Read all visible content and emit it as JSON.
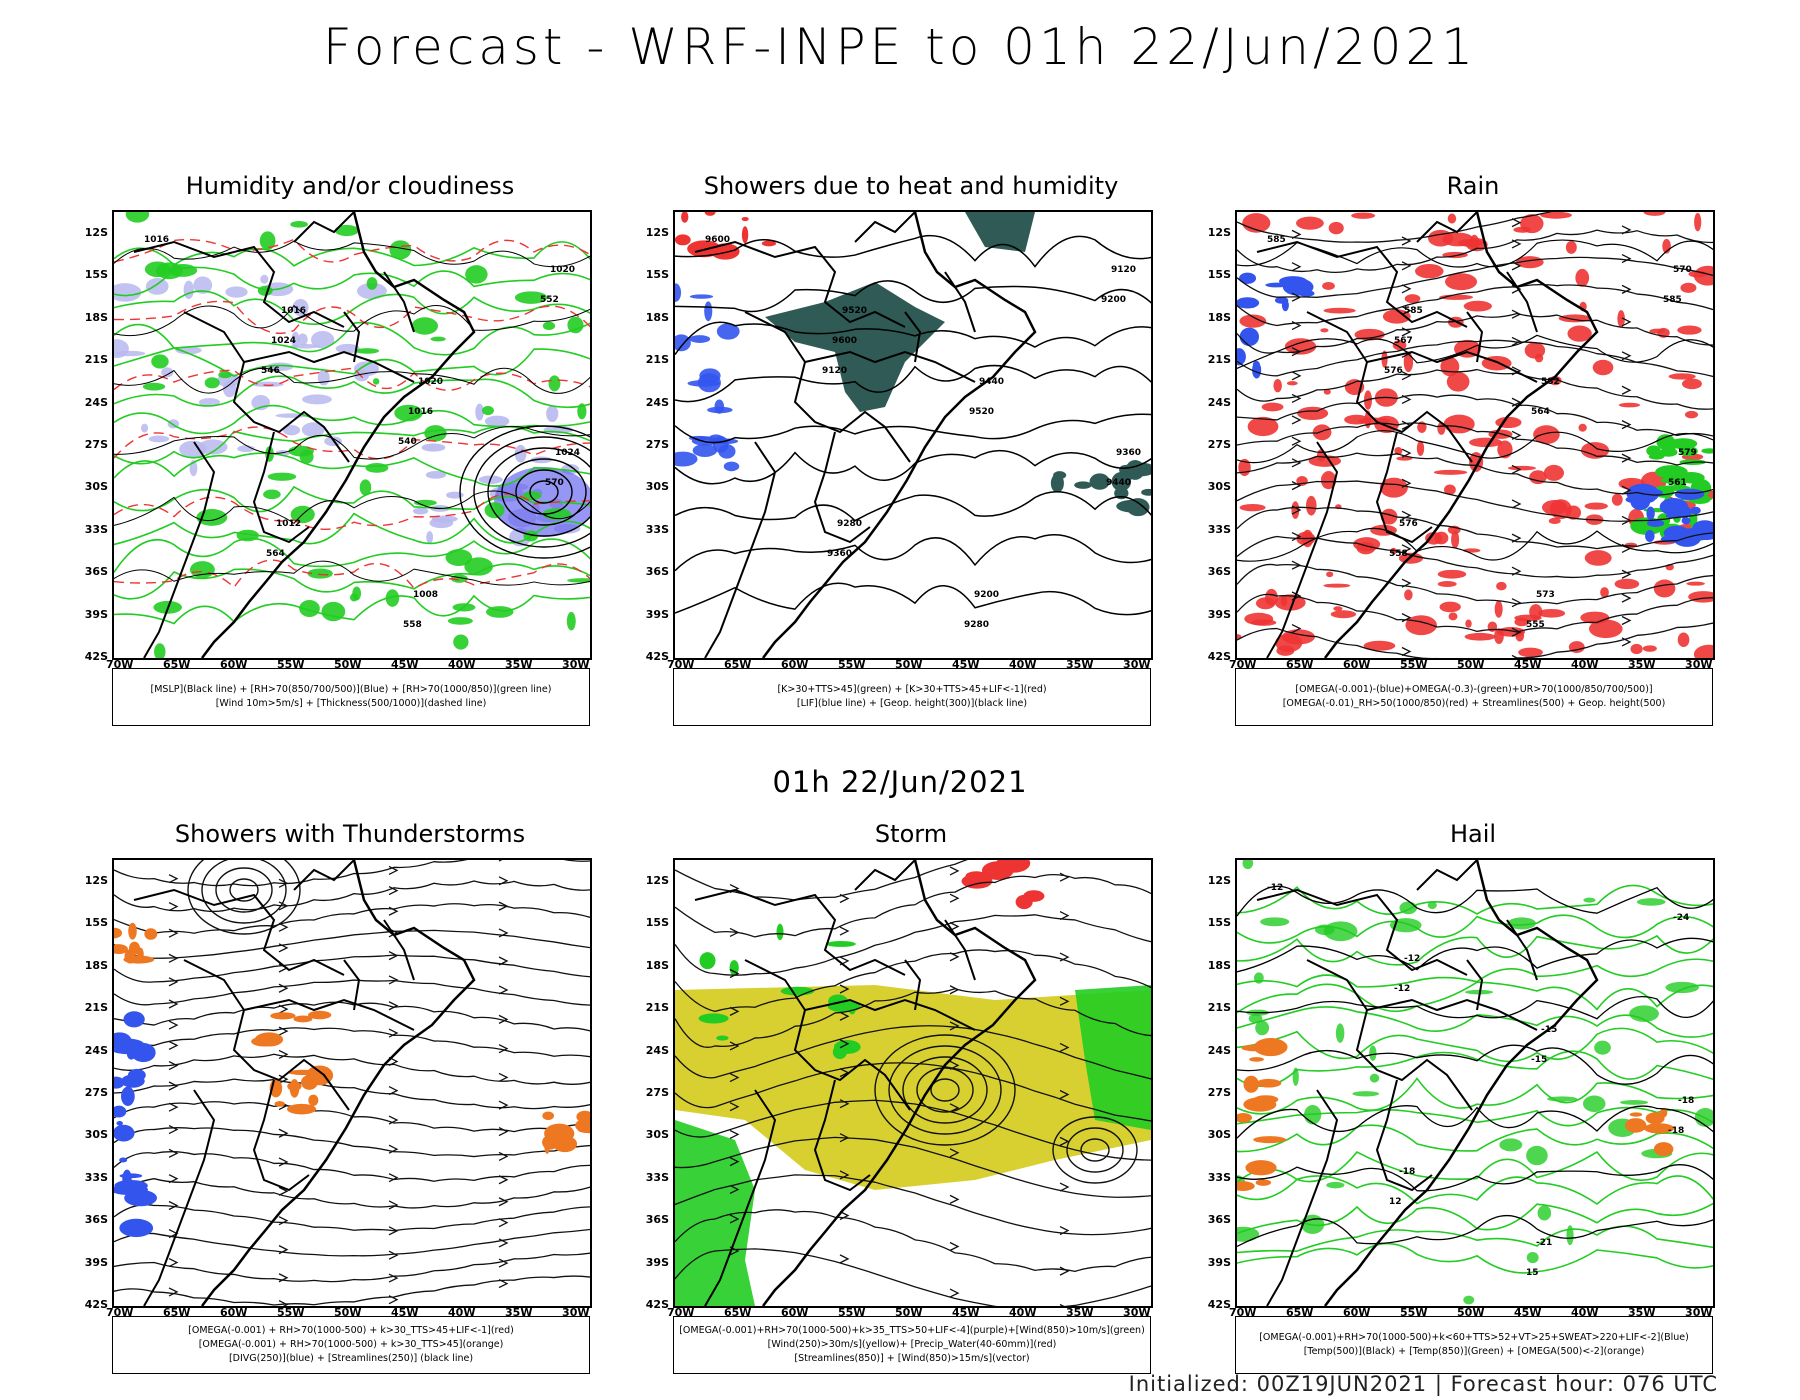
{
  "title": "Forecast - WRF-INPE to 01h 22/Jun/2021",
  "subtitle": "01h 22/Jun/2021",
  "footer": "Initialized: 00Z19JUN2021 | Forecast hour: 076 UTC",
  "lat_labels": [
    "12S",
    "15S",
    "18S",
    "21S",
    "24S",
    "27S",
    "30S",
    "33S",
    "36S",
    "39S",
    "42S"
  ],
  "lon_labels": [
    "70W",
    "65W",
    "60W",
    "55W",
    "50W",
    "45W",
    "40W",
    "35W",
    "30W"
  ],
  "colors": {
    "green": "#22cc22",
    "blue": "#3355ee",
    "red": "#ee3333",
    "orange": "#ee7722",
    "yellow": "#d8d030",
    "teal": "#2f5a55",
    "lavender": "#b8b8f0"
  },
  "panels": [
    {
      "title": "Humidity and/or cloudiness",
      "legend": [
        "[MSLP](Black line) + [RH>70(850/700/500)](Blue) + [RH>70(1000/850)](green line)",
        "[Wind 10m>5m/s] + [Thickness(500/1000)](dashed line)"
      ],
      "contour_labels": [
        "1016",
        "1016",
        "1020",
        "1024",
        "1012",
        "1008",
        "1020",
        "1024",
        "1016",
        "570",
        "564",
        "558",
        "552",
        "546",
        "540"
      ]
    },
    {
      "title": "Showers due to heat and humidity",
      "legend": [
        "[K>30+TTS>45](green) + [K>30+TTS>45+LIF<-1](red)",
        "[LIF](blue line) + [Geop. height(300)](black line)"
      ],
      "contour_labels": [
        "9600",
        "9520",
        "9440",
        "9360",
        "9280",
        "9200",
        "9120",
        "9600",
        "9520",
        "9440",
        "9360",
        "9280",
        "9200",
        "9120"
      ]
    },
    {
      "title": "Rain",
      "legend": [
        "[OMEGA(-0.001)-(blue)+OMEGA(-0.3)-(green)+UR>70(1000/850/700/500)]",
        "[OMEGA(-0.01)_RH>50(1000/850)(red) + Streamlines(500) + Geop. height(500)"
      ],
      "contour_labels": [
        "585",
        "585",
        "582",
        "579",
        "576",
        "573",
        "570",
        "567",
        "564",
        "561",
        "558",
        "555",
        "585",
        "576"
      ]
    },
    {
      "title": "Showers with Thunderstorms",
      "legend": [
        "[OMEGA(-0.001) + RH>70(1000-500) + k>30_TTS>45+LIF<-1](red)",
        "[OMEGA(-0.001) + RH>70(1000-500) + k>30_TTS>45](orange)",
        "[DIVG(250)](blue) + [Streamlines(250)] (black line)"
      ],
      "contour_labels": []
    },
    {
      "title": "Storm",
      "legend": [
        "[OMEGA(-0.001)+RH>70(1000-500)+k>35_TTS>50+LIF<-4](purple)+[Wind(850)>10m/s](green)",
        "[Wind(250)>30m/s](yellow)+ [Precip_Water(40-60mm)](red)",
        "[Streamlines(850)] + [Wind(850)>15m/s](vector)"
      ],
      "contour_labels": []
    },
    {
      "title": "Hail",
      "legend": [
        "[OMEGA(-0.001)+RH>70(1000-500)+k<60+TTS>52+VT>25+SWEAT>220+LIF<-2](Blue)",
        "[Temp(500)](Black) + [Temp(850)](Green) + [OMEGA(500)<-2](orange)"
      ],
      "contour_labels": [
        "-12",
        "-12",
        "-15",
        "-18",
        "-18",
        "-21",
        "-24",
        "-12",
        "-15",
        "-18",
        "12",
        "15"
      ]
    }
  ]
}
